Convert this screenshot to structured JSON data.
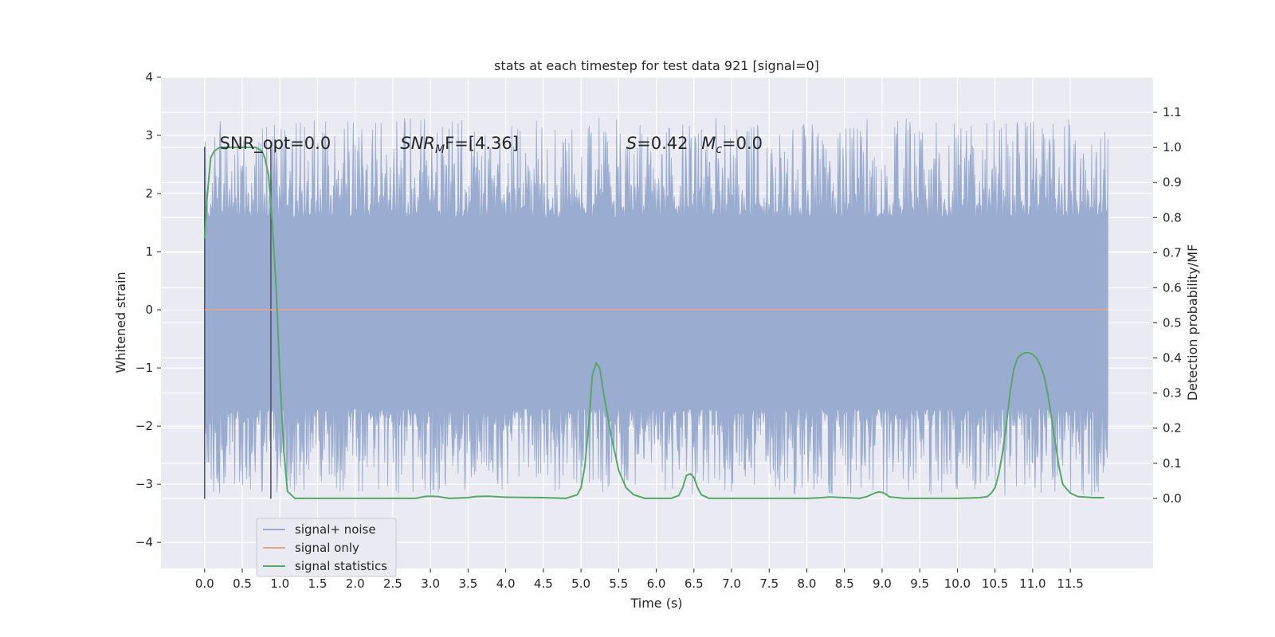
{
  "chart_data": {
    "type": "line",
    "title": "stats at each timestep for test data 921 [signal=0]",
    "xlabel": "Time (s)",
    "ylabel": "Whitened strain",
    "y2label": "Detection probability/MF",
    "xlim": [
      -0.58,
      12.6
    ],
    "ylim": [
      -4.45,
      4.0
    ],
    "y2lim": [
      -0.2,
      1.2
    ],
    "x_ticks": [
      0.0,
      0.5,
      1.0,
      1.5,
      2.0,
      2.5,
      3.0,
      3.5,
      4.0,
      4.5,
      5.0,
      5.5,
      6.0,
      6.5,
      7.0,
      7.5,
      8.0,
      8.5,
      9.0,
      9.5,
      10.0,
      10.5,
      11.0,
      11.5
    ],
    "x_tick_labels": [
      "0.0",
      "0.5",
      "1.0",
      "1.5",
      "2.0",
      "2.5",
      "3.0",
      "3.5",
      "4.0",
      "4.5",
      "5.0",
      "5.5",
      "6.0",
      "6.5",
      "7.0",
      "7.5",
      "8.0",
      "8.5",
      "9.0",
      "9.5",
      "10.0",
      "10.5",
      "11.0",
      "11.5"
    ],
    "y_ticks": [
      4,
      3,
      2,
      1,
      0,
      -1,
      -2,
      -3,
      -4
    ],
    "y_tick_labels": [
      "4",
      "3",
      "2",
      "1",
      "0",
      "−1",
      "−2",
      "−3",
      "−4"
    ],
    "y2_ticks": [
      1.1,
      1.0,
      0.9,
      0.8,
      0.7,
      0.6,
      0.5,
      0.4,
      0.3,
      0.2,
      0.1,
      0.0
    ],
    "y2_tick_labels": [
      "1.1",
      "1.0",
      "0.9",
      "0.8",
      "0.7",
      "0.6",
      "0.5",
      "0.4",
      "0.3",
      "0.2",
      "0.1",
      "0.0"
    ],
    "grid": true,
    "legend_position": "lower-left",
    "annotations": [
      {
        "text": "SNR_opt=0.0",
        "x": 0.2,
        "y": 2.85
      },
      {
        "text": "SNR",
        "sub": "M",
        "after": "F=[4.36]",
        "x": 2.6,
        "y": 2.85
      },
      {
        "text": "S",
        "after": "=0.42",
        "x": 5.6,
        "y": 2.85
      },
      {
        "text": "M",
        "sub": "c",
        "after": "=0.0",
        "x": 6.6,
        "y": 2.85
      }
    ],
    "vertical_markers": [
      {
        "x": 0.0,
        "y_range": [
          -3.25,
          2.8
        ]
      },
      {
        "x": 0.88,
        "y_range": [
          -3.25,
          2.8
        ]
      }
    ],
    "series": [
      {
        "name": "signal+ noise",
        "color": "#9aaccf",
        "x_range": [
          0.0,
          12.0
        ],
        "band": [
          -1.7,
          1.6
        ],
        "envelope_points": 1500
      },
      {
        "name": "signal only",
        "color": "#e6a58a",
        "x": [
          0.0,
          12.0
        ],
        "y": [
          0.0,
          0.0
        ]
      },
      {
        "name": "signal statistics",
        "color": "#55a868",
        "axis": "right",
        "x": [
          0.0,
          0.03,
          0.08,
          0.13,
          0.2,
          0.3,
          0.45,
          0.6,
          0.68,
          0.76,
          0.8,
          0.85,
          0.9,
          0.95,
          1.0,
          1.05,
          1.1,
          1.2,
          1.5,
          2.0,
          2.5,
          2.8,
          2.92,
          3.0,
          3.1,
          3.25,
          3.5,
          3.6,
          3.75,
          3.85,
          4.0,
          4.5,
          4.8,
          4.95,
          5.0,
          5.05,
          5.1,
          5.15,
          5.2,
          5.25,
          5.3,
          5.4,
          5.5,
          5.6,
          5.7,
          5.85,
          6.0,
          6.2,
          6.3,
          6.35,
          6.4,
          6.45,
          6.5,
          6.55,
          6.6,
          6.7,
          6.8,
          7.0,
          7.5,
          8.0,
          8.2,
          8.3,
          8.5,
          8.7,
          8.8,
          8.9,
          8.95,
          9.0,
          9.05,
          9.1,
          9.3,
          9.5,
          10.0,
          10.3,
          10.4,
          10.45,
          10.5,
          10.55,
          10.6,
          10.65,
          10.7,
          10.75,
          10.8,
          10.85,
          10.9,
          10.95,
          11.0,
          11.05,
          11.1,
          11.15,
          11.2,
          11.25,
          11.3,
          11.35,
          11.4,
          11.5,
          11.6,
          11.8,
          11.95
        ],
        "y": [
          0.74,
          0.85,
          0.97,
          0.99,
          1.0,
          1.0,
          1.0,
          1.0,
          1.0,
          0.99,
          0.97,
          0.92,
          0.78,
          0.6,
          0.35,
          0.14,
          0.02,
          0.0,
          0.0,
          0.0,
          0.0,
          0.0,
          0.005,
          0.006,
          0.005,
          0.0,
          0.002,
          0.005,
          0.006,
          0.005,
          0.003,
          0.002,
          0.0,
          0.01,
          0.03,
          0.09,
          0.2,
          0.35,
          0.385,
          0.37,
          0.3,
          0.18,
          0.08,
          0.03,
          0.01,
          0.0,
          0.0,
          0.0,
          0.008,
          0.03,
          0.065,
          0.07,
          0.06,
          0.03,
          0.01,
          0.0,
          0.0,
          0.0,
          0.0,
          0.0,
          0.002,
          0.004,
          0.002,
          0.0,
          0.005,
          0.015,
          0.018,
          0.017,
          0.012,
          0.004,
          0.0,
          0.0,
          0.0,
          0.002,
          0.005,
          0.015,
          0.03,
          0.07,
          0.13,
          0.21,
          0.3,
          0.37,
          0.4,
          0.41,
          0.415,
          0.415,
          0.41,
          0.4,
          0.38,
          0.35,
          0.3,
          0.23,
          0.16,
          0.09,
          0.04,
          0.015,
          0.005,
          0.002,
          0.002
        ]
      }
    ]
  }
}
